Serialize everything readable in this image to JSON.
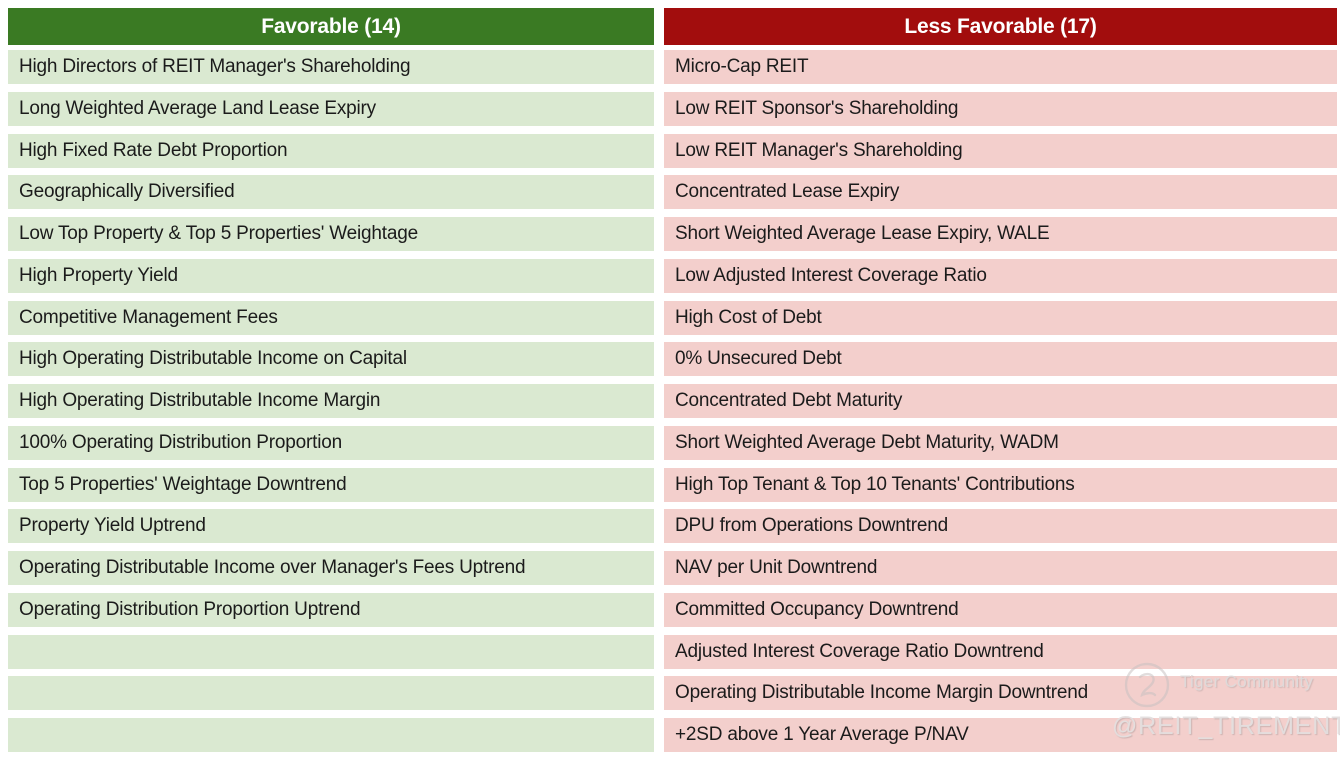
{
  "chart_data": {
    "type": "table",
    "title": "",
    "legend_position": "none",
    "columns": [
      {
        "header": "Favorable (14)",
        "count": 14,
        "items": [
          "High Directors of REIT Manager's Shareholding",
          "Long Weighted Average Land Lease Expiry",
          "High Fixed Rate Debt Proportion",
          "Geographically Diversified",
          "Low Top Property & Top 5 Properties' Weightage",
          "High Property Yield",
          "Competitive Management Fees",
          "High Operating Distributable Income on Capital",
          "High Operating Distributable Income Margin",
          "100% Operating Distribution Proportion",
          "Top 5 Properties' Weightage Downtrend",
          "Property Yield Uptrend",
          "Operating Distributable Income over Manager's Fees Uptrend",
          "Operating Distribution Proportion Uptrend"
        ]
      },
      {
        "header": "Less Favorable (17)",
        "count": 17,
        "items": [
          "Micro-Cap REIT",
          "Low REIT Sponsor's Shareholding",
          "Low REIT Manager's Shareholding",
          "Concentrated Lease Expiry",
          "Short Weighted Average Lease Expiry, WALE",
          "Low Adjusted Interest Coverage Ratio",
          "High Cost of Debt",
          "0% Unsecured Debt",
          "Concentrated Debt Maturity",
          "Short Weighted Average Debt Maturity, WADM",
          "High Top Tenant & Top 10 Tenants' Contributions",
          "DPU from Operations Downtrend",
          "NAV per Unit Downtrend",
          "Committed Occupancy Downtrend",
          "Adjusted Interest Coverage Ratio Downtrend",
          "Operating Distributable Income Margin Downtrend",
          "+2SD above 1 Year Average P/NAV"
        ]
      }
    ]
  },
  "table": {
    "columns": [
      {
        "header": "Favorable (14)",
        "header_bg": "#3A7A23",
        "row_bg": "#DAE9D1",
        "rows": [
          "High Directors of REIT Manager's Shareholding",
          "Long Weighted Average Land Lease Expiry",
          "High Fixed Rate Debt Proportion",
          "Geographically Diversified",
          "Low Top Property & Top 5 Properties' Weightage",
          "High Property Yield",
          "Competitive Management Fees",
          "High Operating Distributable Income on Capital",
          "High Operating Distributable Income Margin",
          "100% Operating Distribution Proportion",
          "Top 5 Properties' Weightage Downtrend",
          "Property Yield Uptrend",
          "Operating Distributable Income over Manager's Fees Uptrend",
          "Operating Distribution Proportion Uptrend",
          "",
          "",
          ""
        ]
      },
      {
        "header": "Less Favorable (17)",
        "header_bg": "#A20D0D",
        "row_bg": "#F3CFCC",
        "rows": [
          "Micro-Cap REIT",
          "Low REIT Sponsor's Shareholding",
          "Low REIT Manager's Shareholding",
          "Concentrated Lease Expiry",
          "Short Weighted Average Lease Expiry, WALE",
          "Low Adjusted Interest Coverage Ratio",
          "High Cost of Debt",
          "0% Unsecured Debt",
          "Concentrated Debt Maturity",
          "Short Weighted Average Debt Maturity, WADM",
          "High Top Tenant & Top 10 Tenants' Contributions",
          "DPU from Operations Downtrend",
          "NAV per Unit Downtrend",
          "Committed Occupancy Downtrend",
          "Adjusted Interest Coverage Ratio Downtrend",
          "Operating Distributable Income Margin Downtrend",
          "+2SD above 1 Year Average P/NAV"
        ]
      }
    ]
  },
  "watermark": {
    "brand": "Tiger Community",
    "handle": "@REIT_TIREMENT"
  },
  "colors": {
    "background": "#FFFFFF",
    "favorable_header_bg": "#3A7A23",
    "favorable_row_bg": "#DAE9D1",
    "less_favorable_header_bg": "#A20D0D",
    "less_favorable_row_bg": "#F3CFCC",
    "header_text": "#FFFFFF",
    "row_text": "#1B1B1B",
    "watermark_text": "#DEDBDB"
  }
}
